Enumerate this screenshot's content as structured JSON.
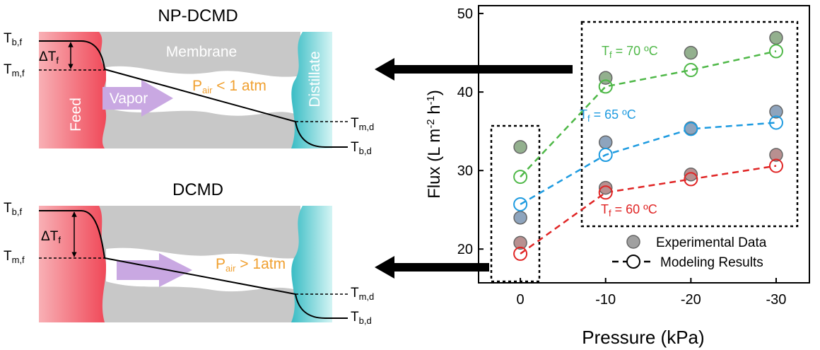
{
  "diagrams": [
    {
      "title": "NP-DCMD",
      "t_bf": {
        "main": "T",
        "sub": "b,f"
      },
      "delta_tf": {
        "main": "ΔT",
        "sub": "f"
      },
      "t_mf": {
        "main": "T",
        "sub": "m,f"
      },
      "membrane": "Membrane",
      "vapor": "Vapor",
      "pressure": {
        "main": "P",
        "sub": "air",
        "tail": " < 1 atm"
      },
      "feed": "Feed",
      "distillate": "Distillate",
      "t_md": {
        "main": "T",
        "sub": "m,d"
      },
      "t_bd": {
        "main": "T",
        "sub": "b,d"
      }
    },
    {
      "title": "DCMD",
      "t_bf": {
        "main": "T",
        "sub": "b,f"
      },
      "delta_tf": {
        "main": "ΔT",
        "sub": "f"
      },
      "t_mf": {
        "main": "T",
        "sub": "m,f"
      },
      "pressure": {
        "main": "P",
        "sub": "air",
        "tail": " > 1atm"
      },
      "t_md": {
        "main": "T",
        "sub": "m,d"
      },
      "t_bd": {
        "main": "T",
        "sub": "b,d"
      }
    }
  ],
  "chart_data": {
    "type": "line",
    "xlabel": "Pressure (kPa)",
    "ylabel": {
      "a": "Flux (L m",
      "sup1": "-2",
      "b": " h",
      "sup2": "-1",
      "c": ")"
    },
    "x": [
      0,
      -10,
      -20,
      -30
    ],
    "xlim": [
      4.9,
      -33.9
    ],
    "xticks": [
      0,
      -10,
      -20,
      -30
    ],
    "ylim": [
      15.7,
      51
    ],
    "yticks": [
      20,
      30,
      40,
      50
    ],
    "legend": {
      "experimental": "Experimental Data",
      "model": "Modeling Results"
    },
    "series": [
      {
        "label": {
          "main": "T",
          "sub": "f",
          "tail": " = 70 ºC"
        },
        "color": "#4fb848",
        "fill": "#93b08e",
        "experimental": [
          33,
          41.8,
          45,
          46.9
        ],
        "model": [
          29.2,
          40.7,
          42.8,
          45.2
        ]
      },
      {
        "label": {
          "main": "T",
          "sub": "f",
          "tail": " = 65 ºC"
        },
        "color": "#1e9be0",
        "fill": "#8ea4bd",
        "experimental": [
          24,
          33.6,
          35.4,
          37.5
        ],
        "model": [
          25.7,
          32,
          35.3,
          36.1
        ]
      },
      {
        "label": {
          "main": "T",
          "sub": "f",
          "tail": " = 60 ºC"
        },
        "color": "#e02525",
        "fill": "#b89090",
        "experimental": [
          20.8,
          27.8,
          29.5,
          32
        ],
        "model": [
          19.4,
          27.2,
          28.9,
          30.6
        ]
      }
    ]
  }
}
